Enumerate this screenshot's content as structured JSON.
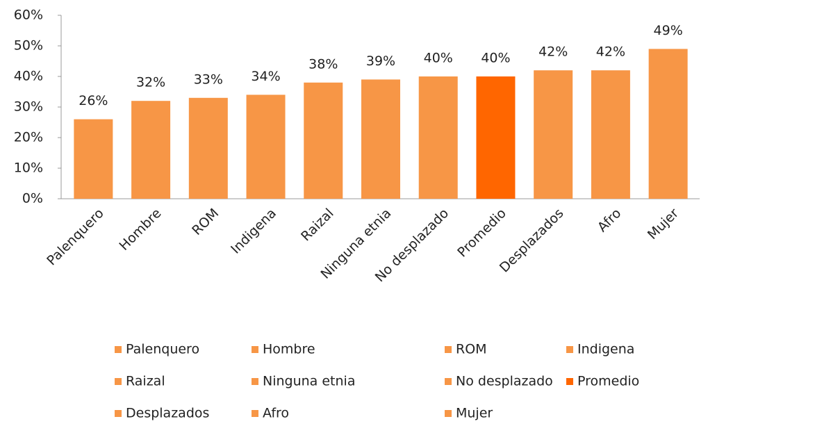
{
  "chart_data": {
    "type": "bar",
    "categories": [
      "Palenquero",
      "Hombre",
      "ROM",
      "Indigena",
      "Raizal",
      "Ninguna etnia",
      "No desplazado",
      "Promedio",
      "Desplazados",
      "Afro",
      "Mujer"
    ],
    "values": [
      26,
      32,
      33,
      34,
      38,
      39,
      40,
      40,
      42,
      42,
      49
    ],
    "value_labels": [
      "26%",
      "32%",
      "33%",
      "34%",
      "38%",
      "39%",
      "40%",
      "40%",
      "42%",
      "42%",
      "49%"
    ],
    "colors": [
      "#f79646",
      "#f79646",
      "#f79646",
      "#f79646",
      "#f79646",
      "#f79646",
      "#f79646",
      "#ff6600",
      "#f79646",
      "#f79646",
      "#f79646"
    ],
    "ylim": [
      0,
      60
    ],
    "yticks": [
      {
        "value": 0,
        "label": "0%"
      },
      {
        "value": 10,
        "label": "10%"
      },
      {
        "value": 20,
        "label": "20%"
      },
      {
        "value": 30,
        "label": "30%"
      },
      {
        "value": 40,
        "label": "40%"
      },
      {
        "value": 50,
        "label": "50%"
      },
      {
        "value": 60,
        "label": "60%"
      }
    ],
    "grid": false,
    "legend": "bottom"
  }
}
